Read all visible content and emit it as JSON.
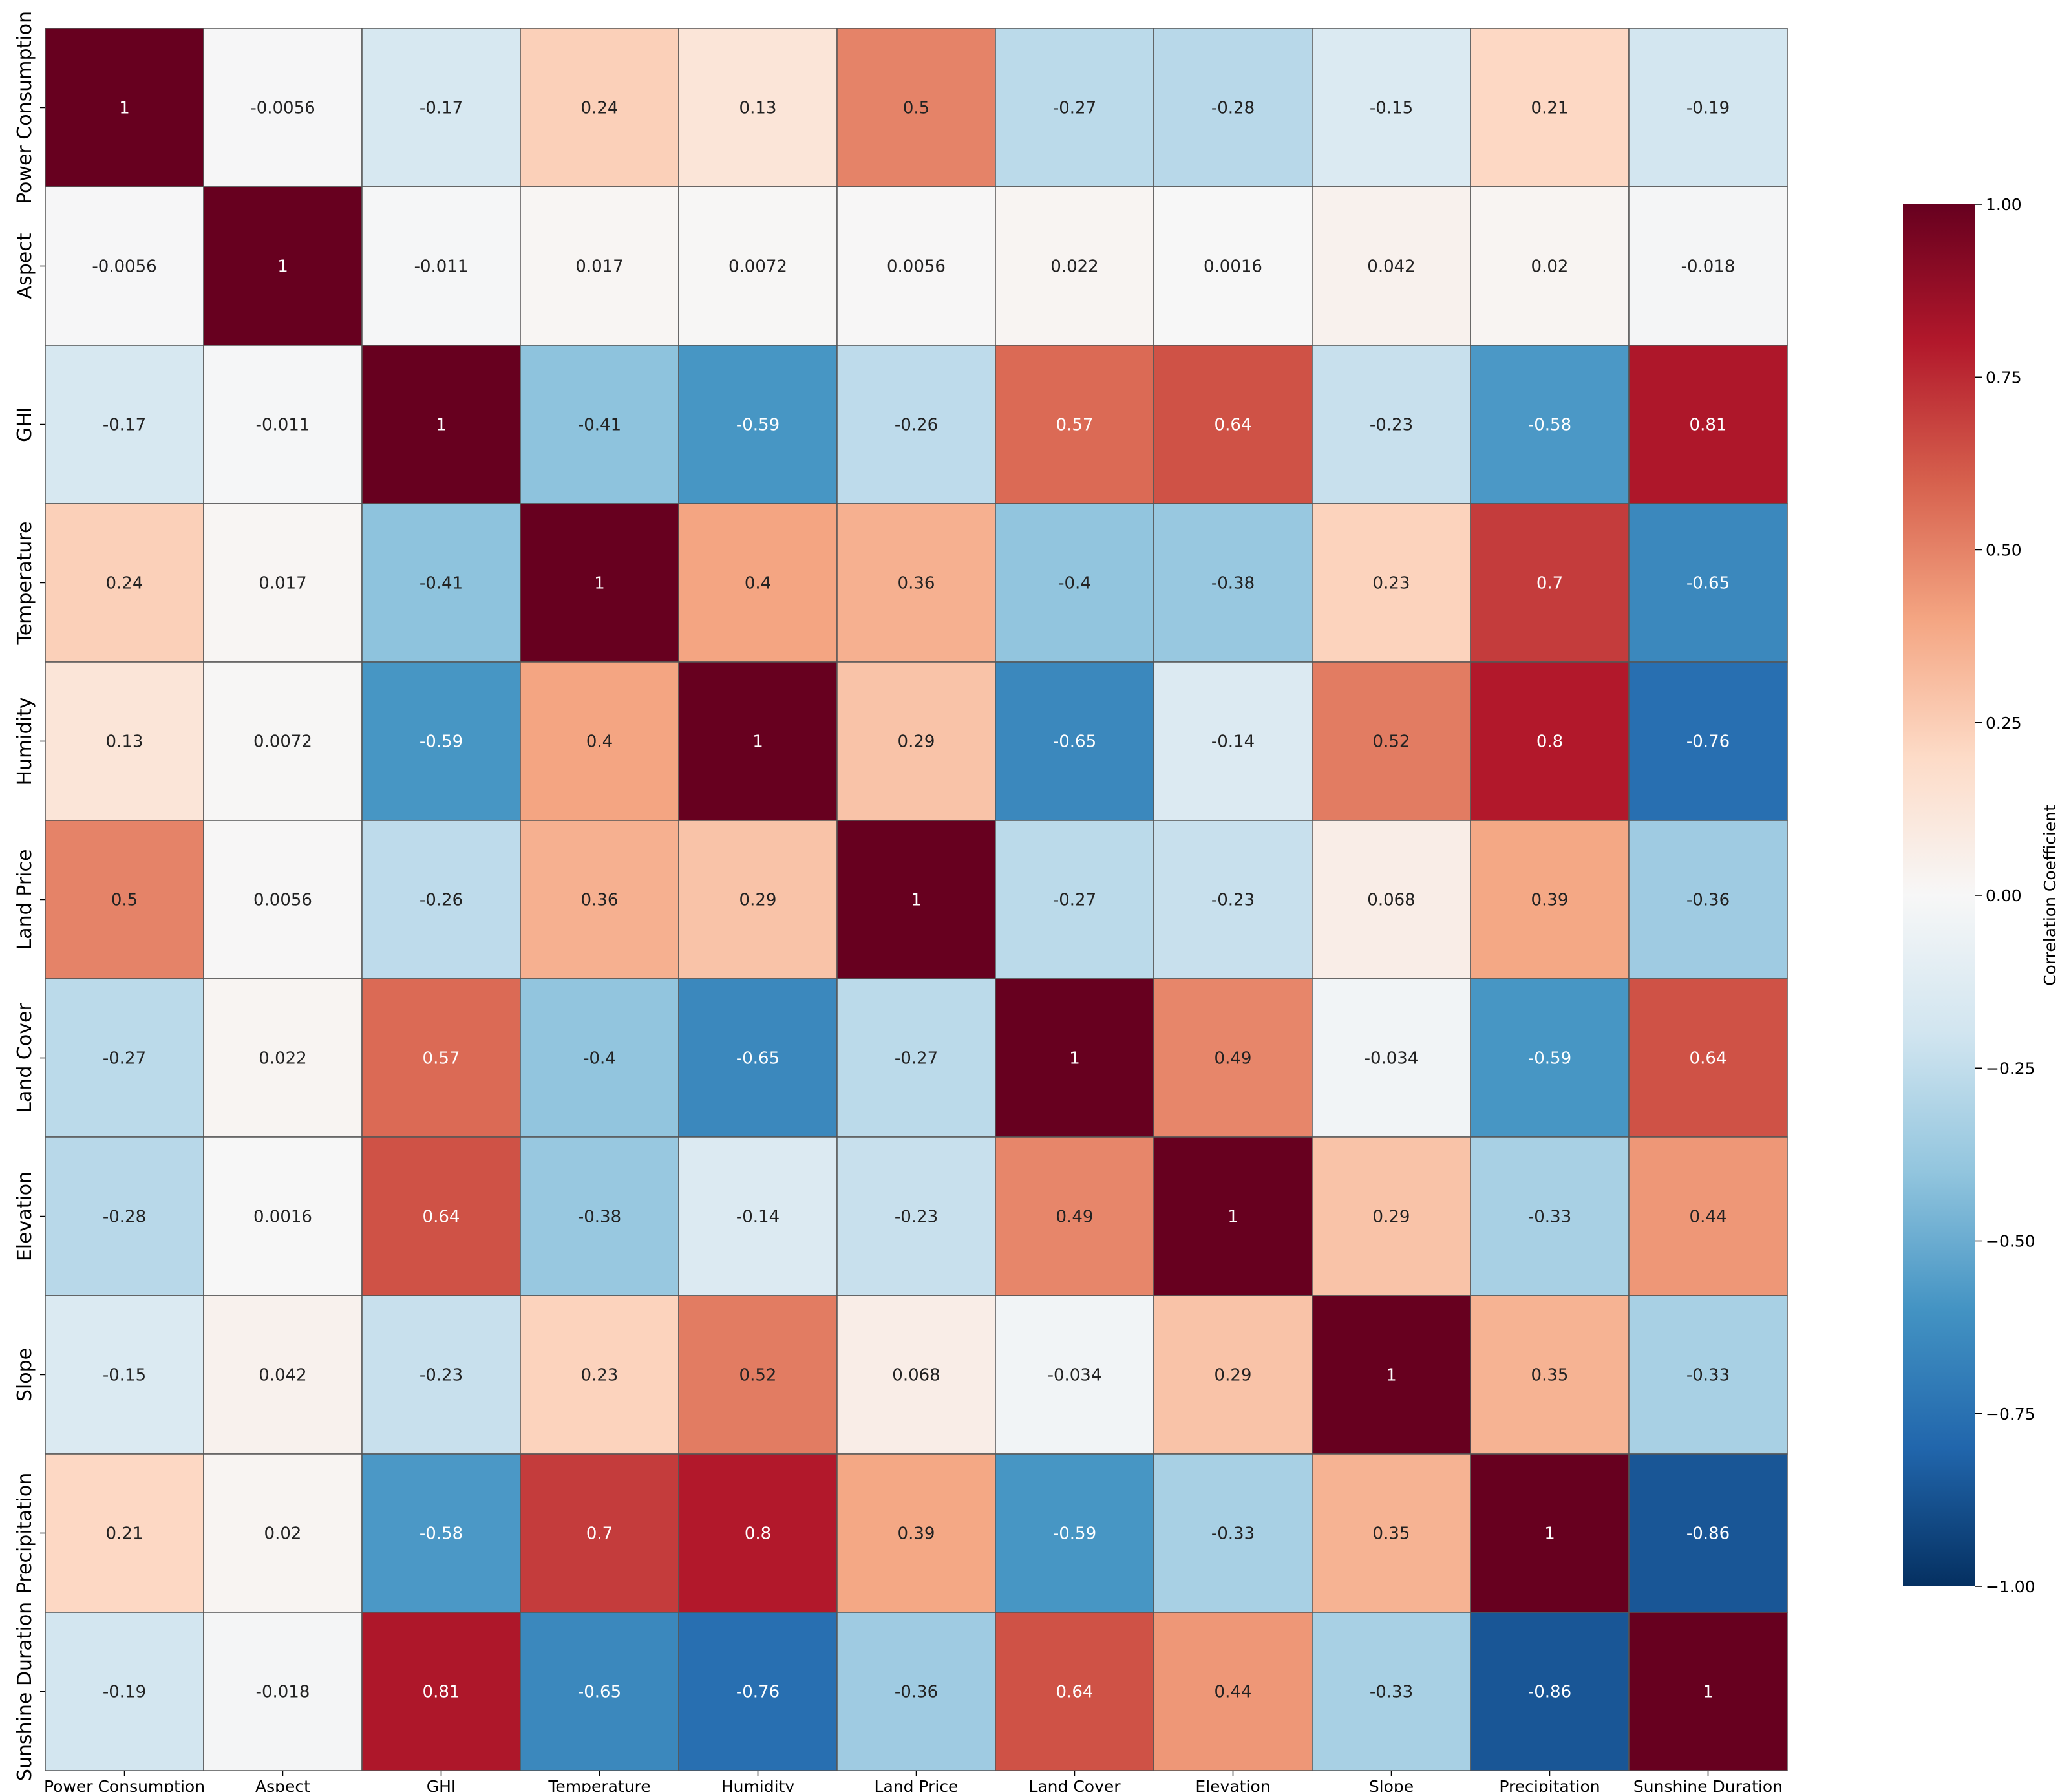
{
  "chart_data": {
    "type": "heatmap",
    "title": "",
    "labels": [
      "Power Consumption",
      "Aspect",
      "GHI",
      "Temperature",
      "Humidity",
      "Land Price",
      "Land Cover",
      "Elevation",
      "Slope",
      "Precipitation",
      "Sunshine Duration"
    ],
    "matrix": [
      [
        1,
        -0.0056,
        -0.17,
        0.24,
        0.13,
        0.5,
        -0.27,
        -0.28,
        -0.15,
        0.21,
        -0.19
      ],
      [
        -0.0056,
        1,
        -0.011,
        0.017,
        0.0072,
        0.0056,
        0.022,
        0.0016,
        0.042,
        0.02,
        -0.018
      ],
      [
        -0.17,
        -0.011,
        1,
        -0.41,
        -0.59,
        -0.26,
        0.57,
        0.64,
        -0.23,
        -0.58,
        0.81
      ],
      [
        0.24,
        0.017,
        -0.41,
        1,
        0.4,
        0.36,
        -0.4,
        -0.38,
        0.23,
        0.7,
        -0.65
      ],
      [
        0.13,
        0.0072,
        -0.59,
        0.4,
        1,
        0.29,
        -0.65,
        -0.14,
        0.52,
        0.8,
        -0.76
      ],
      [
        0.5,
        0.0056,
        -0.26,
        0.36,
        0.29,
        1,
        -0.27,
        -0.23,
        0.068,
        0.39,
        -0.36
      ],
      [
        -0.27,
        0.022,
        0.57,
        -0.4,
        -0.65,
        -0.27,
        1,
        0.49,
        -0.034,
        -0.59,
        0.64
      ],
      [
        -0.28,
        0.0016,
        0.64,
        -0.38,
        -0.14,
        -0.23,
        0.49,
        1,
        0.29,
        -0.33,
        0.44
      ],
      [
        -0.15,
        0.042,
        -0.23,
        0.23,
        0.52,
        0.068,
        -0.034,
        0.29,
        1,
        0.35,
        -0.33
      ],
      [
        0.21,
        0.02,
        -0.58,
        0.7,
        0.8,
        0.39,
        -0.59,
        -0.33,
        0.35,
        1,
        -0.86
      ],
      [
        -0.19,
        -0.018,
        0.81,
        -0.65,
        -0.76,
        -0.36,
        0.64,
        0.44,
        -0.33,
        -0.86,
        1
      ]
    ],
    "colorbar": {
      "label": "Correlation Coefficient",
      "range": [
        -1,
        1
      ],
      "ticks": [
        "1.00",
        "0.75",
        "0.50",
        "0.25",
        "0.00",
        "−0.25",
        "−0.50",
        "−0.75",
        "−1.00"
      ],
      "tick_values": [
        1,
        0.75,
        0.5,
        0.25,
        0,
        -0.25,
        -0.5,
        -0.75,
        -1
      ]
    },
    "colormap": "RdBu_r",
    "colormap_stops": [
      "#053061",
      "#2166ac",
      "#4393c3",
      "#92c5de",
      "#d1e5f0",
      "#f7f7f7",
      "#fddbc7",
      "#f4a582",
      "#d6604d",
      "#b2182b",
      "#67001f"
    ]
  }
}
